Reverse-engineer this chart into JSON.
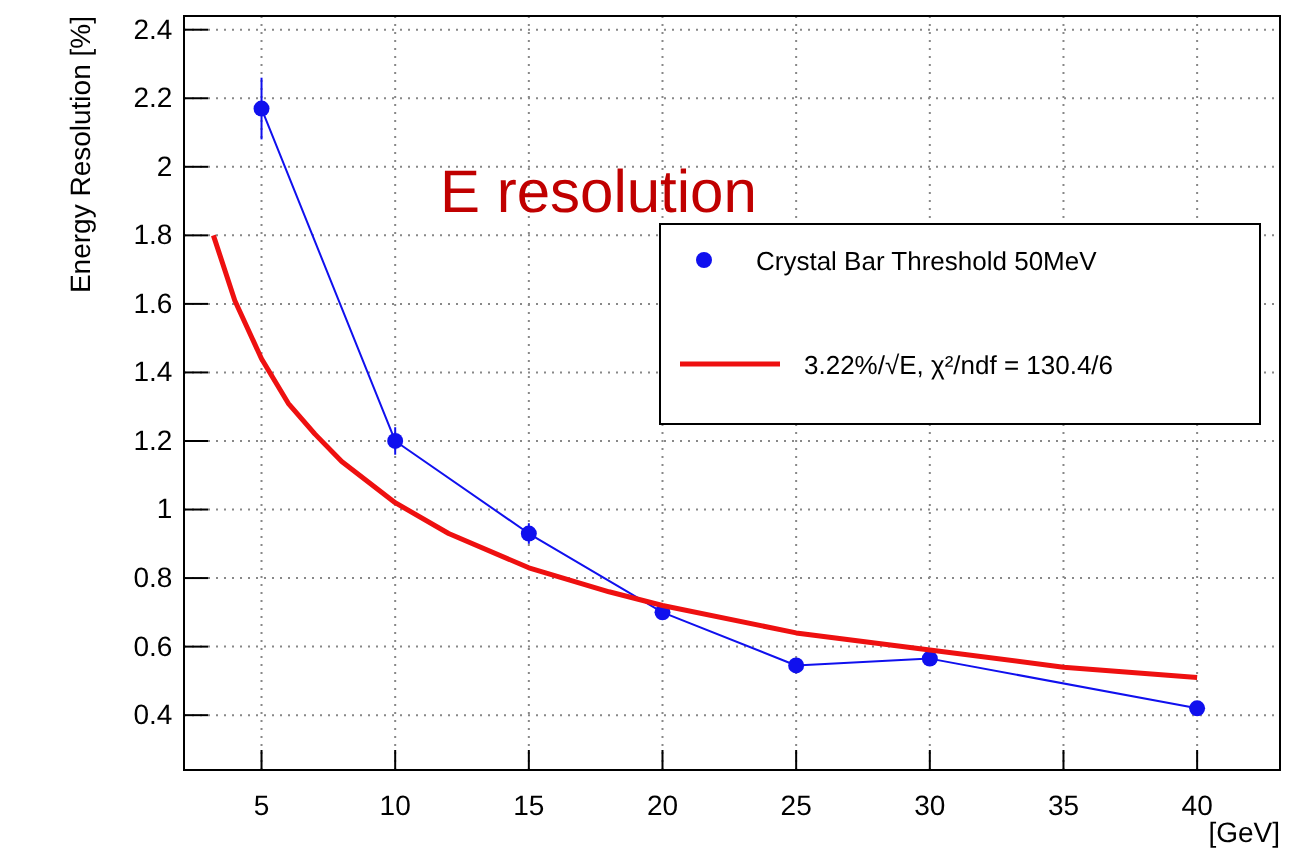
{
  "chart_data": {
    "type": "line",
    "xlabel": "[GeV]",
    "ylabel": "Energy Resolution [%]",
    "annotations": [
      "E resolution"
    ],
    "xlim": [
      2.1,
      43.1
    ],
    "xticks": [
      5,
      10,
      15,
      20,
      25,
      30,
      35,
      40
    ],
    "ylim": [
      0.24,
      2.44
    ],
    "yticks": [
      0.4,
      0.6,
      0.8,
      1,
      1.2,
      1.4,
      1.6,
      1.8,
      2,
      2.2,
      2.4
    ],
    "grid": true,
    "legend": "top right",
    "series": [
      {
        "name": "Crystal Bar Threshold 50MeV",
        "color": "#1010ee",
        "marker": "circle",
        "x": [
          5,
          10,
          15,
          20,
          25,
          30,
          40
        ],
        "values": [
          2.17,
          1.2,
          0.93,
          0.7,
          0.545,
          0.565,
          0.42
        ],
        "errors": [
          0.09,
          0.04,
          0.03,
          0.02,
          0.015,
          0.02,
          0.02
        ]
      },
      {
        "name": "3.22%/√E, χ²/ndf = 130.4/6",
        "color": "#ee1010",
        "marker": "none",
        "x": [
          3.2,
          4,
          5,
          6,
          7,
          8,
          10,
          12,
          15,
          18,
          20,
          25,
          30,
          35,
          40
        ],
        "values": [
          1.8,
          1.61,
          1.44,
          1.31,
          1.22,
          1.14,
          1.02,
          0.93,
          0.83,
          0.76,
          0.72,
          0.64,
          0.59,
          0.54,
          0.51
        ]
      }
    ]
  }
}
